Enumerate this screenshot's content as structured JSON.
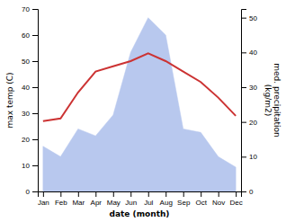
{
  "chart_data": {
    "type": "line",
    "xlabel": "date (month)",
    "ylabel": "max temp (C)",
    "y2label": "med. precipitation\n(kg/m2)",
    "categories": [
      "Jan",
      "Feb",
      "Mar",
      "Apr",
      "May",
      "Jun",
      "Jul",
      "Aug",
      "Sep",
      "Oct",
      "Nov",
      "Dec"
    ],
    "series": [
      {
        "type": "line",
        "color": "#cc3333",
        "values": [
          27,
          28,
          38,
          46,
          48,
          50,
          53,
          50,
          46,
          42,
          36,
          29
        ]
      },
      {
        "type": "area",
        "color": "#b8c8ee",
        "axis": "y2",
        "values": [
          13,
          10,
          18,
          16,
          22,
          40,
          50,
          45,
          18,
          17,
          10,
          7
        ]
      }
    ],
    "ylim": [
      0,
      70
    ],
    "yticks": [
      0,
      10,
      20,
      30,
      40,
      50,
      60,
      70
    ],
    "y2lim": [
      0,
      52.5
    ],
    "y2ticks": [
      0,
      10,
      20,
      30,
      40,
      50
    ]
  }
}
